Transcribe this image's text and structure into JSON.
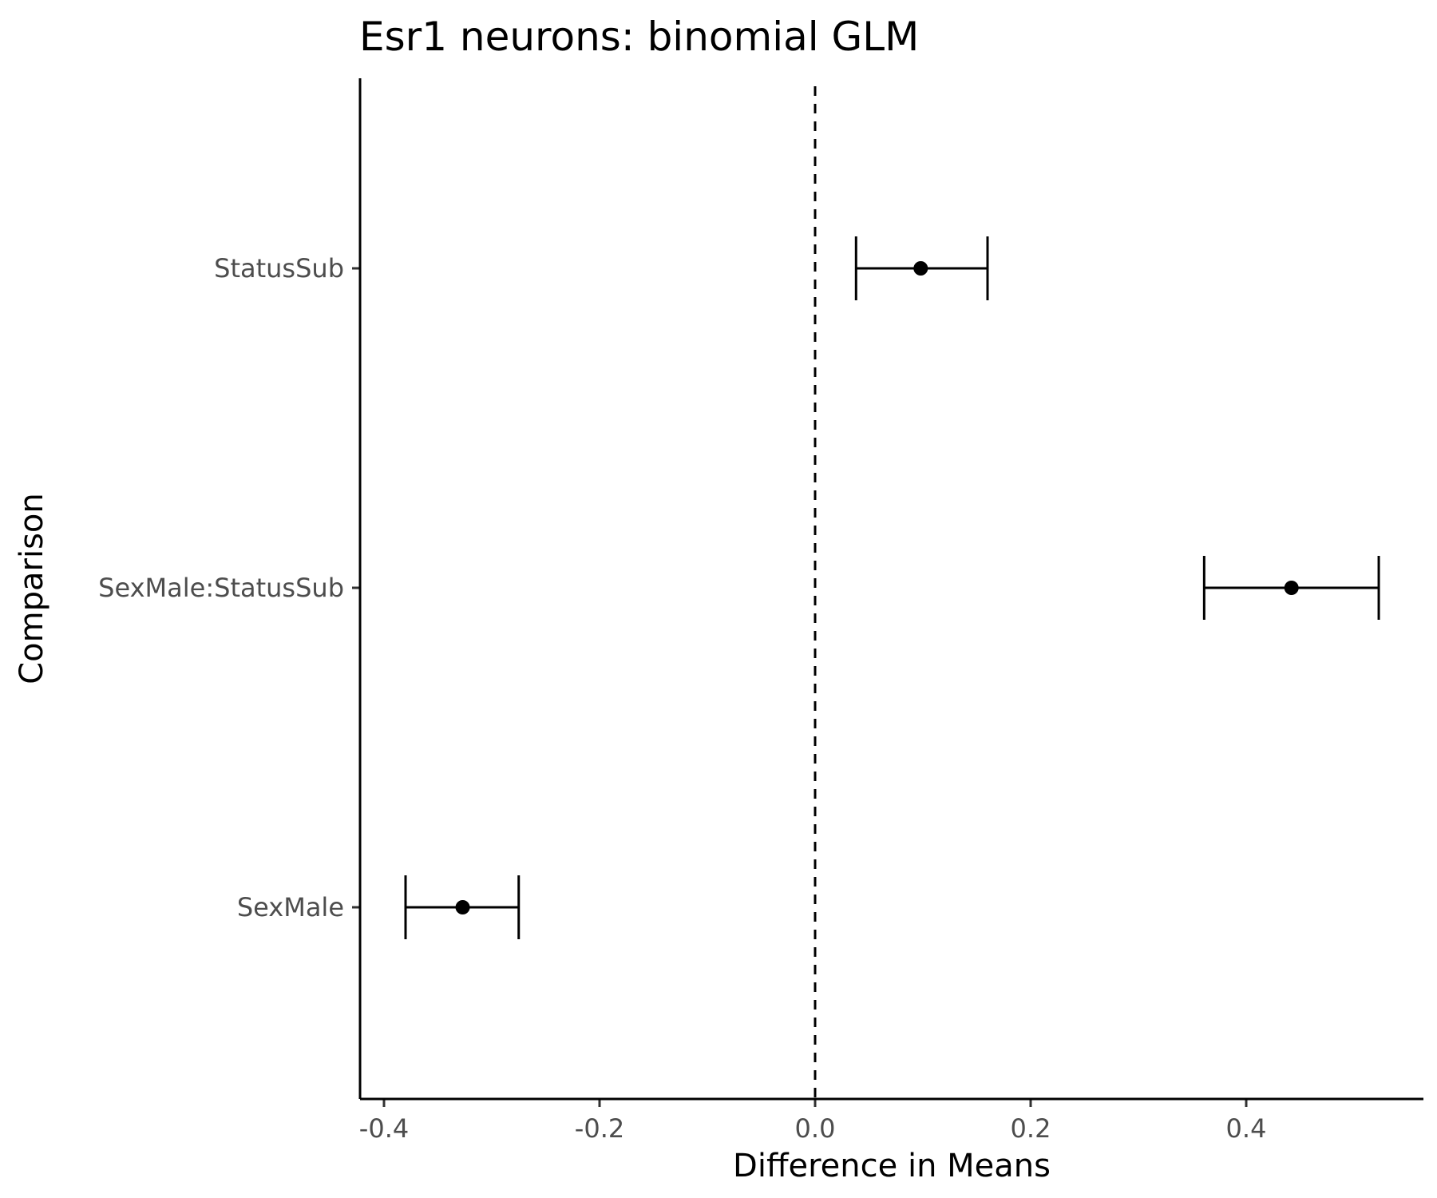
{
  "chart_data": {
    "type": "scatter",
    "title": "Esr1 neurons: binomial GLM",
    "xlabel": "Difference in Means",
    "ylabel": "Comparison",
    "xlim": [
      -0.4,
      0.57
    ],
    "xticks": [
      "-0.4",
      "-0.2",
      "0.0",
      "0.2",
      "0.4"
    ],
    "xtick_values": [
      -0.4,
      -0.2,
      0.0,
      0.2,
      0.4
    ],
    "categories": [
      "SexMale",
      "SexMale:StatusSub",
      "StatusSub"
    ],
    "series": [
      {
        "estimates": [
          -0.327,
          0.442,
          0.098
        ],
        "ci_low": [
          -0.38,
          0.361,
          0.038
        ],
        "ci_high": [
          -0.275,
          0.523,
          0.16
        ]
      }
    ],
    "reference_line": 0.0,
    "grid": false
  }
}
